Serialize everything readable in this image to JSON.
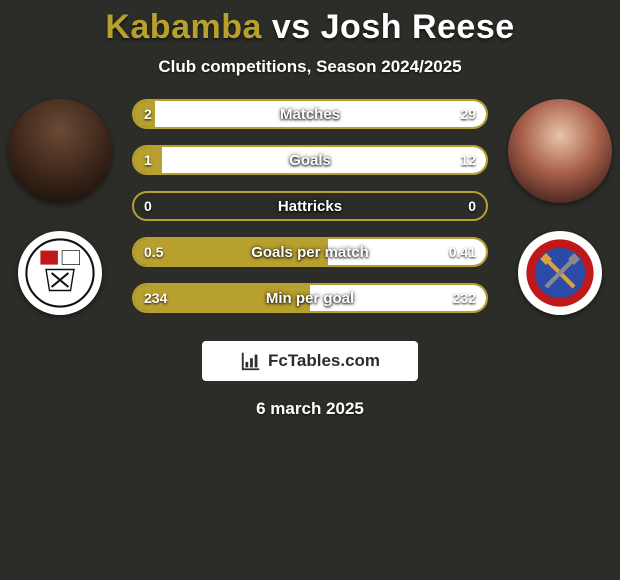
{
  "title": {
    "player1_name": "Kabamba",
    "vs": "vs",
    "player2_name": "Josh Reese",
    "player1_color": "#b7a02e",
    "player2_color": "#ffffff"
  },
  "subtitle": "Club competitions, Season 2024/2025",
  "colors": {
    "background": "#2c2d28",
    "accent": "#b7a02e",
    "secondary": "#ffffff",
    "bar_border": "#b7a02e"
  },
  "stats": [
    {
      "label": "Matches",
      "left_value": "2",
      "right_value": "29",
      "left_pct": 6,
      "right_pct": 94
    },
    {
      "label": "Goals",
      "left_value": "1",
      "right_value": "12",
      "left_pct": 8,
      "right_pct": 92
    },
    {
      "label": "Hattricks",
      "left_value": "0",
      "right_value": "0",
      "left_pct": 0,
      "right_pct": 0
    },
    {
      "label": "Goals per match",
      "left_value": "0.5",
      "right_value": "0.41",
      "left_pct": 55,
      "right_pct": 45
    },
    {
      "label": "Min per goal",
      "left_value": "234",
      "right_value": "232",
      "left_pct": 50,
      "right_pct": 50
    }
  ],
  "footer": {
    "brand_text": "FcTables.com",
    "date": "6 march 2025"
  },
  "clubs": {
    "left_name": "Bromley FC",
    "right_name": "Dagenham & Redbridge"
  }
}
